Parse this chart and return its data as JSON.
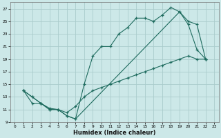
{
  "xlabel": "Humidex (Indice chaleur)",
  "bg_color": "#cce8e8",
  "grid_color": "#aacccc",
  "line_color": "#1e6b5e",
  "xlim_min": -0.5,
  "xlim_max": 23.5,
  "ylim_min": 9,
  "ylim_max": 28,
  "xticks": [
    0,
    1,
    2,
    3,
    4,
    5,
    6,
    7,
    8,
    9,
    10,
    11,
    12,
    13,
    14,
    15,
    16,
    17,
    18,
    19,
    20,
    21,
    22,
    23
  ],
  "yticks": [
    9,
    11,
    13,
    15,
    17,
    19,
    21,
    23,
    25,
    27
  ],
  "curve1_x": [
    1,
    2,
    3,
    4,
    5,
    6,
    7,
    8,
    9,
    10,
    11,
    12,
    13,
    14,
    15,
    16,
    17,
    18,
    19,
    20,
    21,
    22
  ],
  "curve1_y": [
    14,
    13,
    12,
    11,
    11,
    10,
    9.5,
    15,
    19.5,
    21,
    21,
    23,
    24,
    25.5,
    25.5,
    25,
    26,
    27.2,
    26.5,
    24.5,
    20.5,
    19
  ],
  "curve2_x": [
    1,
    2,
    3,
    4,
    5,
    6,
    7,
    8,
    9,
    10,
    11,
    12,
    13,
    14,
    15,
    16,
    17,
    18,
    19,
    20,
    21,
    22
  ],
  "curve2_y": [
    14,
    12,
    12,
    11,
    11,
    10.5,
    11.5,
    13,
    14,
    14.5,
    15,
    15.5,
    16,
    16.5,
    17,
    17.5,
    18,
    18.5,
    19,
    19.5,
    19,
    19
  ],
  "curve3_x": [
    1,
    2,
    3,
    4,
    5,
    6,
    7,
    19,
    20,
    21,
    22
  ],
  "curve3_y": [
    14,
    13,
    12,
    11.2,
    11,
    10,
    9.5,
    26.5,
    25,
    24.5,
    19
  ]
}
